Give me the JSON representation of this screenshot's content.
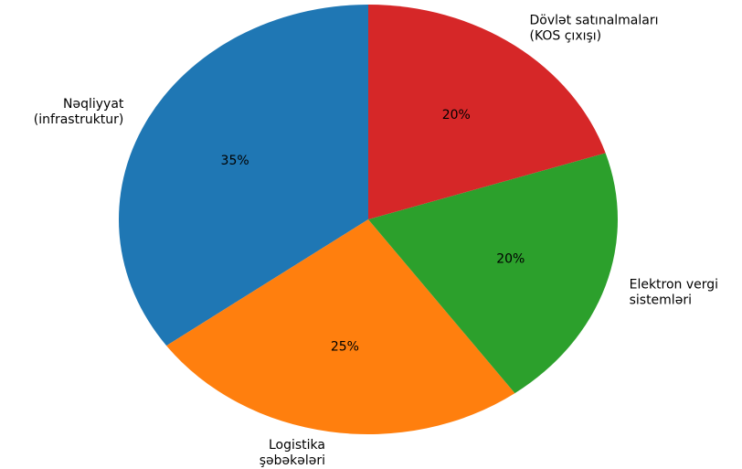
{
  "chart_data": {
    "type": "pie",
    "title": "",
    "startangle": 90,
    "direction": "counterclockwise",
    "slices": [
      {
        "label": [
          "Nəqliyyat",
          "(infrastruktur)"
        ],
        "value": 35,
        "pct_label": "35%",
        "color": "#1f77b4"
      },
      {
        "label": [
          "Logistika",
          "şəbəkələri"
        ],
        "value": 25,
        "pct_label": "25%",
        "color": "#ff7f0e"
      },
      {
        "label": [
          "Elektron vergi",
          "sistemləri"
        ],
        "value": 20,
        "pct_label": "20%",
        "color": "#2ca02c"
      },
      {
        "label": [
          "Dövlət satınalmaları",
          "(KOS çıxışı)"
        ],
        "value": 20,
        "pct_label": "20%",
        "color": "#d62728"
      }
    ]
  }
}
